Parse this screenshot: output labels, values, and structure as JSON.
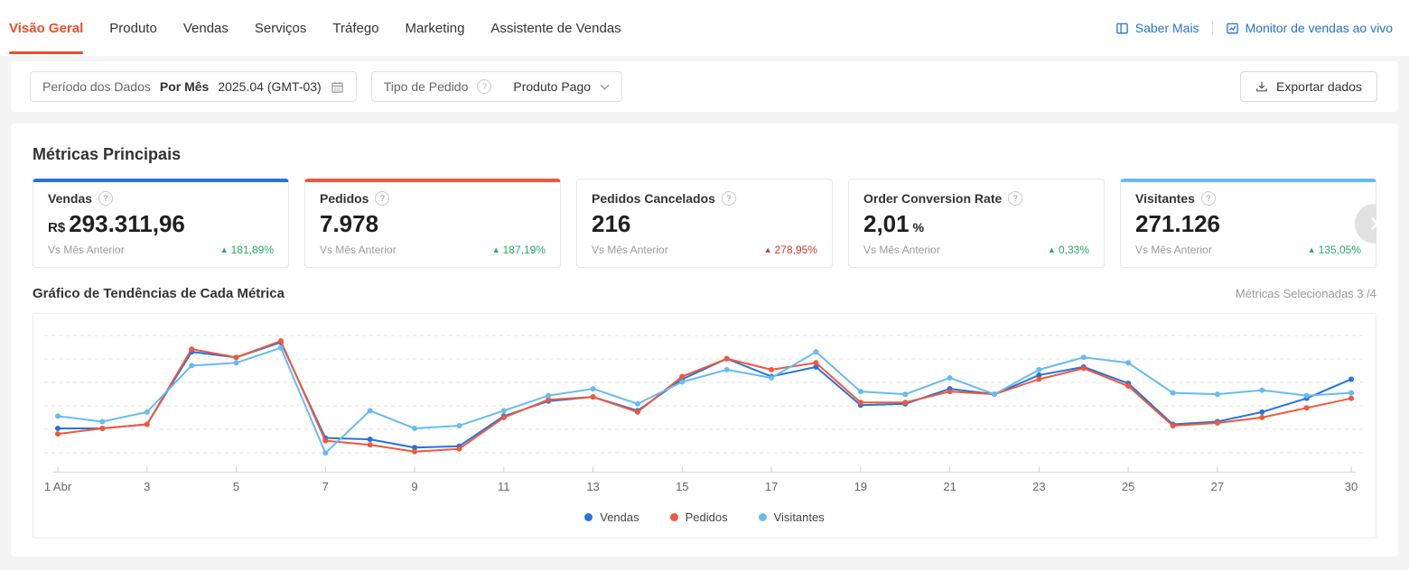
{
  "nav": {
    "tabs": [
      {
        "label": "Visão Geral",
        "active": true
      },
      {
        "label": "Produto",
        "active": false
      },
      {
        "label": "Vendas",
        "active": false
      },
      {
        "label": "Serviços",
        "active": false
      },
      {
        "label": "Tráfego",
        "active": false
      },
      {
        "label": "Marketing",
        "active": false
      },
      {
        "label": "Assistente de Vendas",
        "active": false
      }
    ],
    "links": {
      "saber_mais": "Saber Mais",
      "monitor_vendas": "Monitor de vendas ao vivo"
    }
  },
  "filters": {
    "period_label": "Período dos Dados",
    "period_mode": "Por Mês",
    "period_value": "2025.04 (GMT-03)",
    "order_type_label": "Tipo de Pedido",
    "order_type_value": "Produto Pago",
    "export_label": "Exportar dados"
  },
  "metrics": {
    "title": "Métricas Principais",
    "compare_label": "Vs Mês Anterior",
    "cards": [
      {
        "label": "Vendas",
        "value_prefix": "R$",
        "value": "293.311,96",
        "change": "181,89%",
        "direction": "up",
        "change_color": "#27ab62",
        "accent": "#2673dd",
        "selected": true
      },
      {
        "label": "Pedidos",
        "value": "7.978",
        "change": "187,19%",
        "direction": "up",
        "change_color": "#27ab62",
        "accent": "#f0583c",
        "selected": true
      },
      {
        "label": "Pedidos Cancelados",
        "value": "216",
        "change": "278,95%",
        "direction": "up",
        "change_color": "#d5382e",
        "accent": null,
        "selected": false
      },
      {
        "label": "Order Conversion Rate",
        "value": "2,01",
        "value_suffix": "%",
        "change": "0,33%",
        "direction": "up",
        "change_color": "#27ab62",
        "accent": null,
        "selected": false
      },
      {
        "label": "Visitantes",
        "value": "271.126",
        "change": "135,05%",
        "direction": "up",
        "change_color": "#27ab62",
        "accent": "#66bbf2",
        "selected": true
      }
    ]
  },
  "trend": {
    "title": "Gráfico de Tendências de Cada Métrica",
    "selected_label": "Métricas Selecionadas 3 /4"
  },
  "chart_data": {
    "type": "line",
    "x_unit": "day of April 2025",
    "x": [
      1,
      2,
      3,
      4,
      5,
      6,
      7,
      8,
      9,
      10,
      11,
      12,
      13,
      14,
      15,
      16,
      17,
      18,
      19,
      20,
      21,
      22,
      23,
      24,
      25,
      26,
      27,
      28,
      29,
      30
    ],
    "x_tick_days": [
      1,
      3,
      5,
      7,
      9,
      11,
      13,
      15,
      17,
      19,
      21,
      23,
      25,
      27,
      30
    ],
    "x_tick_labels": [
      "1 Abr",
      "3",
      "5",
      "7",
      "9",
      "11",
      "13",
      "15",
      "17",
      "19",
      "21",
      "23",
      "25",
      "27",
      "30"
    ],
    "y_scale": "normalized 0-100 (y axis unlabeled in UI)",
    "ylim": [
      0,
      100
    ],
    "grid": true,
    "legend_position": "bottom",
    "series": [
      {
        "name": "Vendas",
        "color": "#2673dd",
        "values": [
          32,
          32,
          35,
          88,
          84,
          95,
          25,
          24,
          18,
          19,
          41,
          52,
          55,
          45,
          68,
          83,
          70,
          77,
          49,
          50,
          61,
          57,
          71,
          77,
          65,
          35,
          37,
          44,
          54,
          68
        ]
      },
      {
        "name": "Pedidos",
        "color": "#f0583c",
        "values": [
          28,
          32,
          35,
          90,
          84,
          96,
          23,
          20,
          15,
          17,
          40,
          53,
          55,
          44,
          70,
          83,
          75,
          80,
          51,
          51,
          59,
          57,
          68,
          76,
          63,
          34,
          36,
          40,
          47,
          54
        ]
      },
      {
        "name": "Visitantes",
        "color": "#66bbf2",
        "values": [
          41,
          37,
          44,
          78,
          80,
          91,
          14,
          45,
          32,
          34,
          45,
          56,
          61,
          50,
          66,
          75,
          69,
          88,
          59,
          57,
          69,
          57,
          75,
          84,
          80,
          58,
          57,
          60,
          56,
          58
        ]
      }
    ]
  },
  "colors": {
    "active_tab": "#ee4d2d",
    "link_blue": "#2673dd",
    "green_up": "#27ab62",
    "red_up": "#d5382e"
  }
}
